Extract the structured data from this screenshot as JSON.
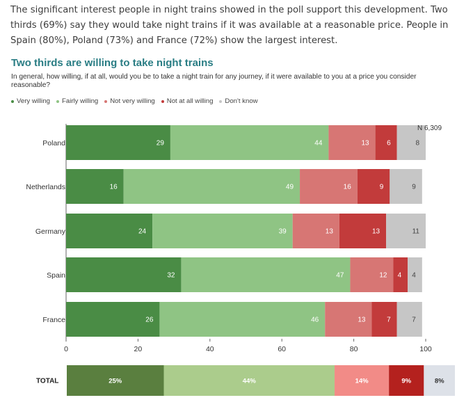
{
  "intro_text": "The significant interest people in night trains showed in the poll support this development. Two thirds (69%) say they would take night trains if it was available at a reasonable price. People in Spain (80%), Poland (73%) and France (72%) show the largest interest.",
  "chart_data": {
    "type": "bar",
    "orientation": "horizontal-stacked-100",
    "title": "Two thirds are willing to take night trains",
    "subtitle": "In general, how willing, if at all, would you be to take a night train for any journey, if it were available to you at a price you consider reasonable?",
    "sample_size_label": "N 6,309",
    "categories": [
      "Poland",
      "Netherlands",
      "Germany",
      "Spain",
      "France"
    ],
    "series": [
      {
        "name": "Very willing",
        "color": "#4a8c45",
        "values": [
          29,
          16,
          24,
          32,
          26
        ]
      },
      {
        "name": "Fairly willing",
        "color": "#8fc484",
        "values": [
          44,
          49,
          39,
          47,
          46
        ]
      },
      {
        "name": "Not very willing",
        "color": "#d77674",
        "values": [
          13,
          16,
          13,
          12,
          13
        ]
      },
      {
        "name": "Not at all willing",
        "color": "#c23b3b",
        "values": [
          6,
          9,
          13,
          4,
          7
        ]
      },
      {
        "name": "Don't know",
        "color": "#c6c6c6",
        "values": [
          8,
          9,
          11,
          4,
          7
        ]
      }
    ],
    "xlim": [
      0,
      100
    ],
    "xticks": [
      0,
      20,
      40,
      60,
      80,
      100
    ],
    "legend_position": "top-left",
    "total": {
      "label": "TOTAL",
      "values": [
        25,
        44,
        14,
        9,
        8
      ],
      "value_labels": [
        "25%",
        "44%",
        "14%",
        "9%",
        "8%"
      ],
      "colors": [
        "#5a7f3f",
        "#abcc8c",
        "#f28b87",
        "#b4211e",
        "#dde1e8"
      ]
    }
  }
}
